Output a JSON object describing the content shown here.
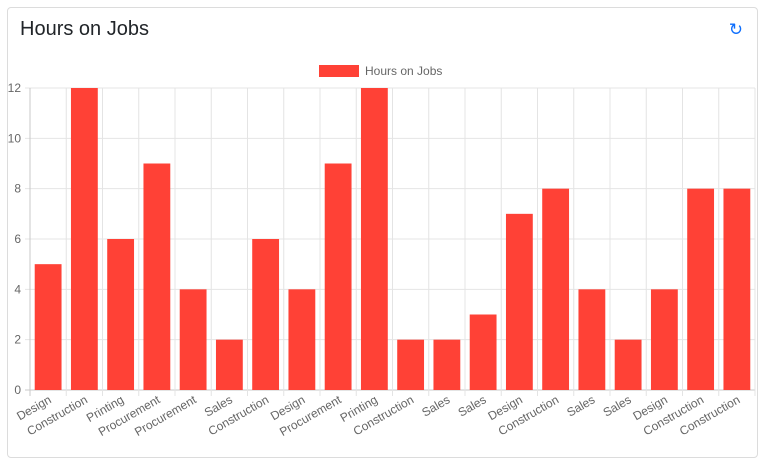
{
  "card": {
    "title": "Hours on Jobs",
    "refresh_icon": "refresh-icon"
  },
  "chart_data": {
    "type": "bar",
    "title": "",
    "legend": {
      "label": "Hours on Jobs",
      "placement": "top"
    },
    "categories": [
      "Design",
      "Construction",
      "Printing",
      "Procurement",
      "Procurement",
      "Sales",
      "Construction",
      "Design",
      "Procurement",
      "Printing",
      "Construction",
      "Sales",
      "Sales",
      "Design",
      "Construction",
      "Sales",
      "Sales",
      "Design",
      "Construction",
      "Construction"
    ],
    "series": [
      {
        "name": "Hours on Jobs",
        "values": [
          5,
          12,
          6,
          9,
          4,
          2,
          6,
          4,
          9,
          12,
          2,
          2,
          3,
          7,
          8,
          4,
          2,
          4,
          8,
          8
        ]
      }
    ],
    "ylim": [
      0,
      12
    ],
    "yticks": [
      0,
      2,
      4,
      6,
      8,
      10,
      12
    ],
    "grid": true,
    "color": "#ff4136"
  }
}
